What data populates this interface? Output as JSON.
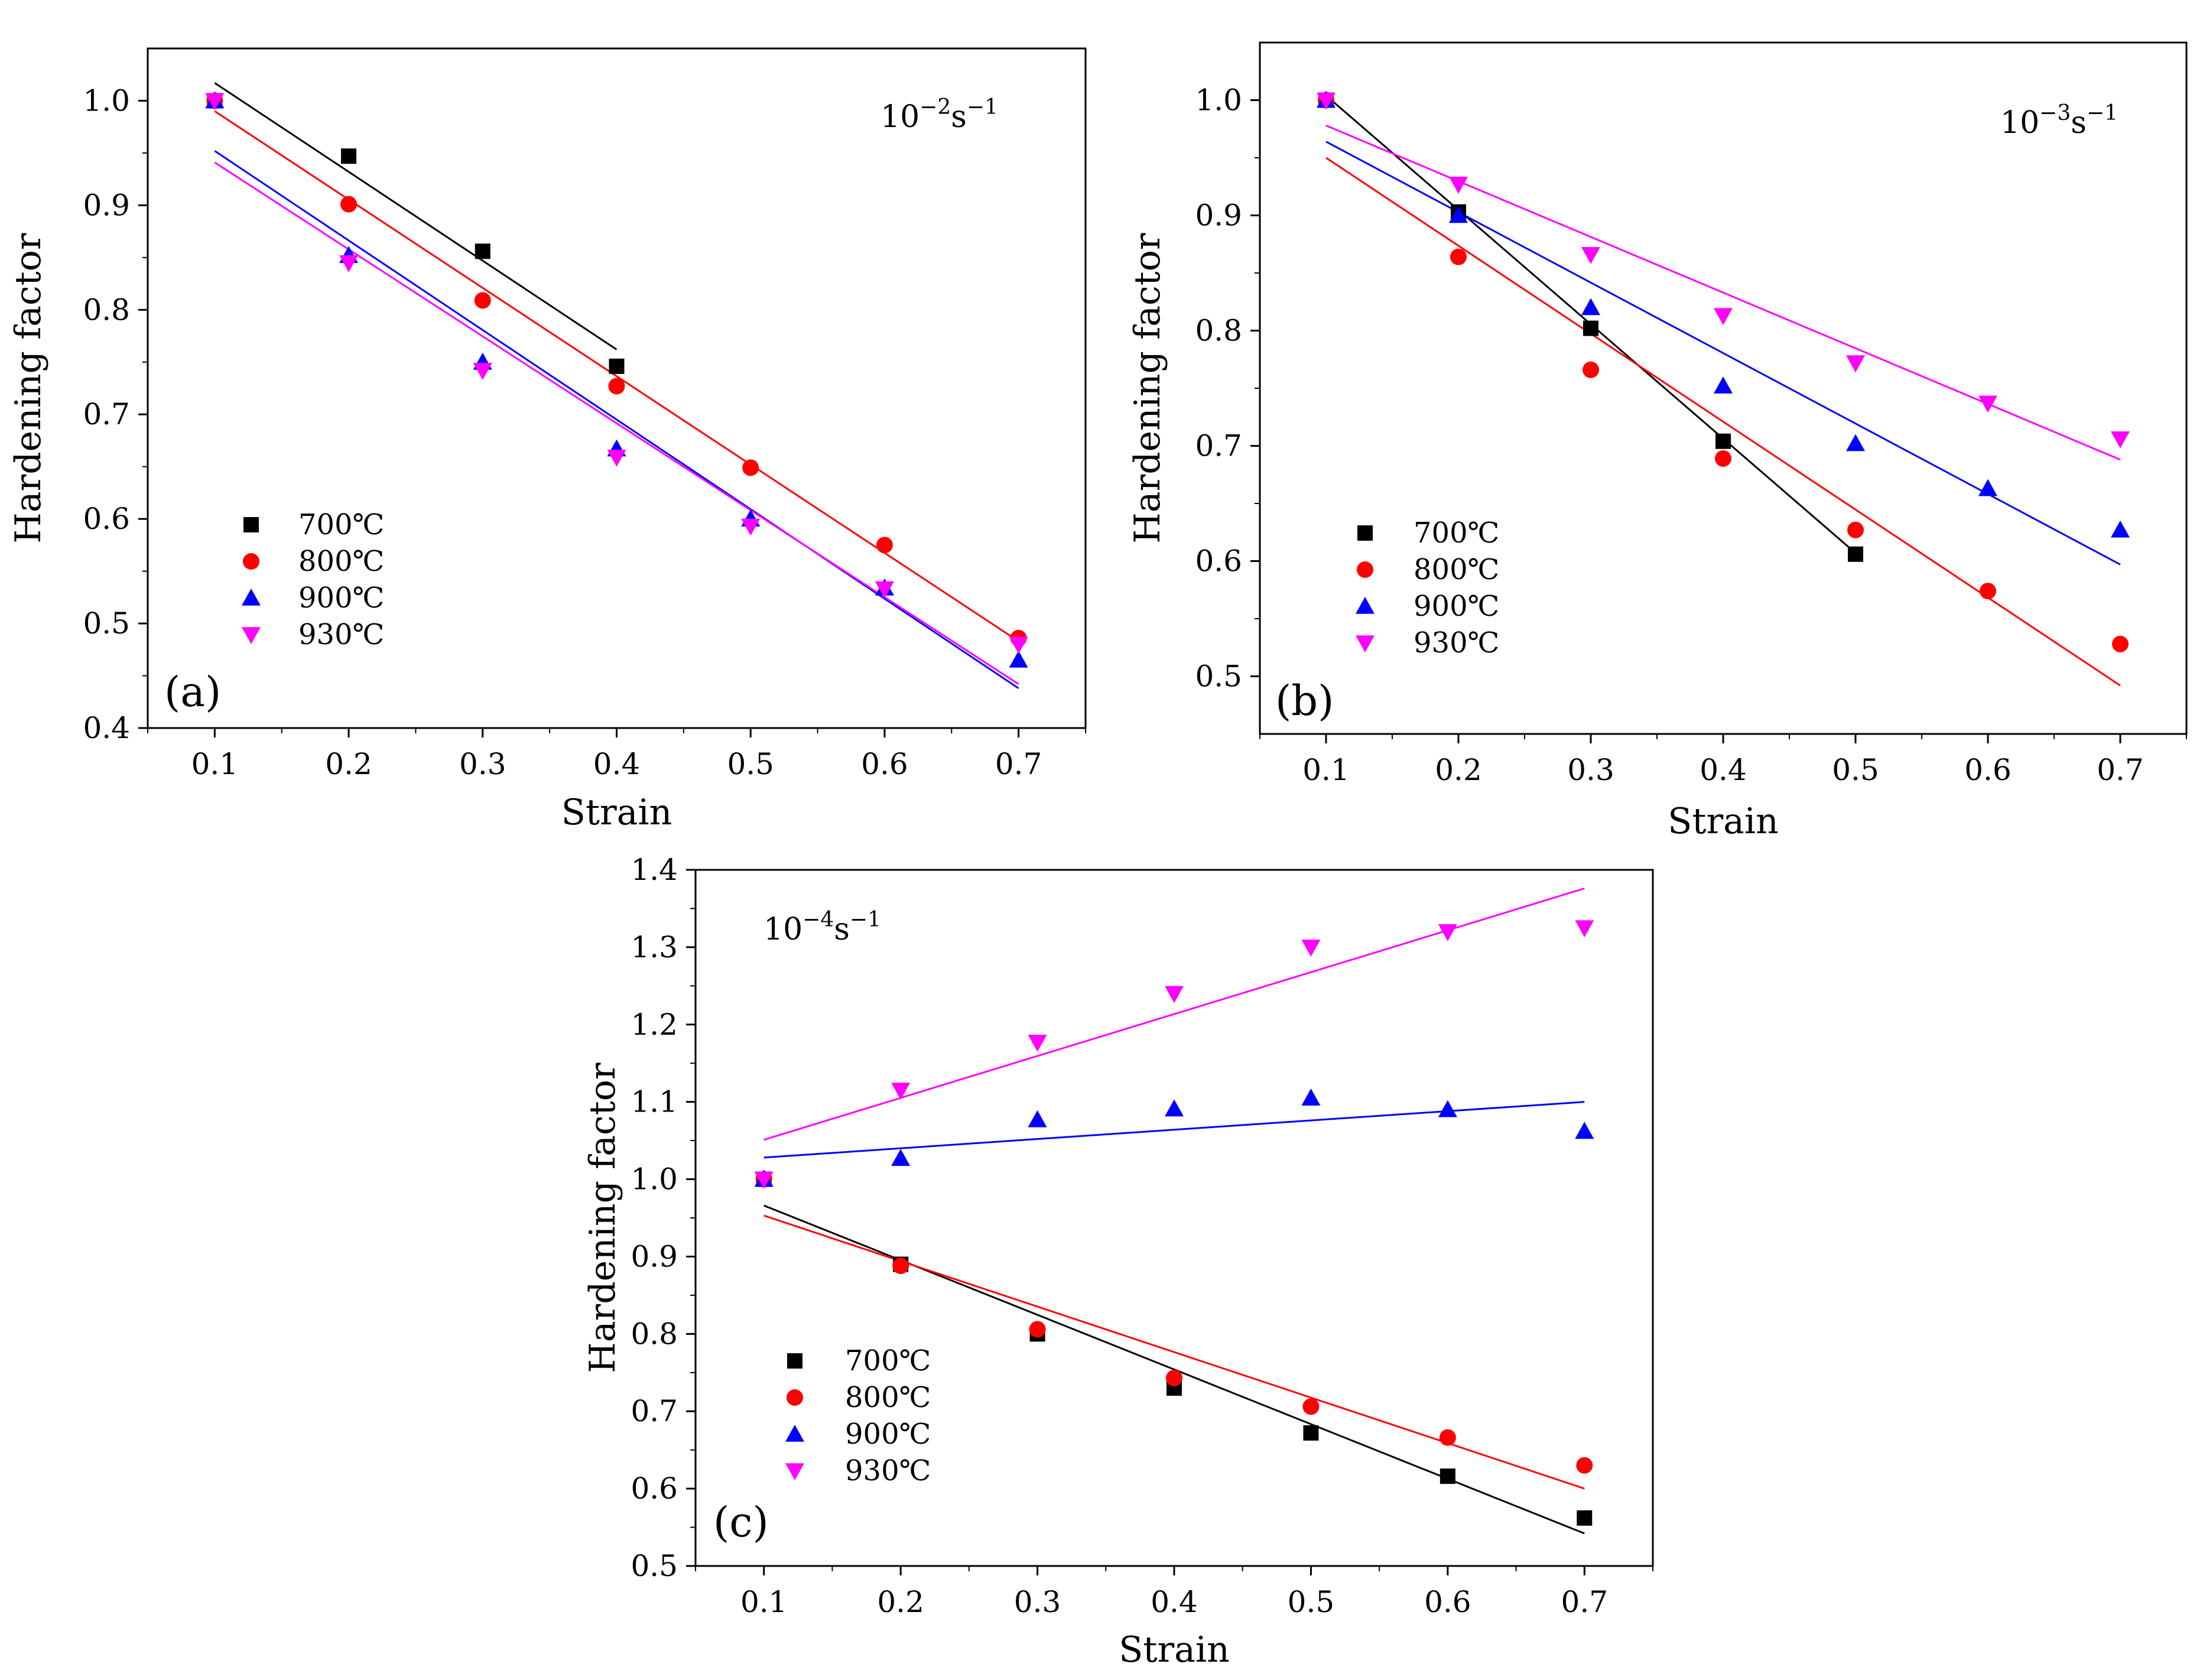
{
  "chart_data": [
    {
      "type": "scatter",
      "panel_label": "(a)",
      "rate_label": {
        "base": "10",
        "exp": "−2",
        "unit": "s",
        "unit_exp": "−1"
      },
      "xlabel": "Strain",
      "ylabel": "Hardening factor",
      "xlim": [
        0.05,
        0.75
      ],
      "ylim": [
        0.4,
        1.05
      ],
      "xticks": [
        "0.1",
        "0.2",
        "0.3",
        "0.4",
        "0.5",
        "0.6",
        "0.7"
      ],
      "yticks": [
        "0.4",
        "0.5",
        "0.6",
        "0.7",
        "0.8",
        "0.9",
        "1.0"
      ],
      "legend_position": "bottom-left",
      "series": [
        {
          "name": "700℃",
          "color": "#000000",
          "marker": "square",
          "x": [
            0.1,
            0.2,
            0.3,
            0.4
          ],
          "y": [
            1.0,
            0.947,
            0.856,
            0.746
          ],
          "fit": [
            [
              0.1,
              1.017
            ],
            [
              0.4,
              0.762
            ]
          ]
        },
        {
          "name": "800℃",
          "color": "#ff0000",
          "marker": "circle",
          "x": [
            0.1,
            0.2,
            0.3,
            0.4,
            0.5,
            0.6,
            0.7
          ],
          "y": [
            1.0,
            0.901,
            0.809,
            0.727,
            0.649,
            0.575,
            0.486
          ],
          "fit": [
            [
              0.1,
              0.99
            ],
            [
              0.7,
              0.483
            ]
          ]
        },
        {
          "name": "900℃",
          "color": "#0000ff",
          "marker": "triangle-up",
          "x": [
            0.1,
            0.2,
            0.3,
            0.4,
            0.5,
            0.6,
            0.7
          ],
          "y": [
            1.0,
            0.852,
            0.75,
            0.667,
            0.6,
            0.534,
            0.465
          ],
          "fit": [
            [
              0.1,
              0.952
            ],
            [
              0.7,
              0.438
            ]
          ]
        },
        {
          "name": "930℃",
          "color": "#ff00ff",
          "marker": "triangle-down",
          "x": [
            0.1,
            0.2,
            0.3,
            0.4,
            0.5,
            0.6,
            0.7
          ],
          "y": [
            1.0,
            0.845,
            0.742,
            0.659,
            0.593,
            0.533,
            0.48
          ],
          "fit": [
            [
              0.1,
              0.941
            ],
            [
              0.7,
              0.442
            ]
          ]
        }
      ]
    },
    {
      "type": "scatter",
      "panel_label": "(b)",
      "rate_label": {
        "base": "10",
        "exp": "−3",
        "unit": "s",
        "unit_exp": "−1"
      },
      "xlabel": "Strain",
      "ylabel": "Hardening factor",
      "xlim": [
        0.05,
        0.75
      ],
      "ylim": [
        0.45,
        1.05
      ],
      "xticks": [
        "0.1",
        "0.2",
        "0.3",
        "0.4",
        "0.5",
        "0.6",
        "0.7"
      ],
      "yticks": [
        "0.5",
        "0.6",
        "0.7",
        "0.8",
        "0.9",
        "1.0"
      ],
      "legend_position": "bottom-left",
      "series": [
        {
          "name": "700℃",
          "color": "#000000",
          "marker": "square",
          "x": [
            0.1,
            0.2,
            0.3,
            0.4,
            0.5
          ],
          "y": [
            1.0,
            0.903,
            0.802,
            0.704,
            0.606
          ],
          "fit": [
            [
              0.1,
              1.004
            ],
            [
              0.5,
              0.607
            ]
          ]
        },
        {
          "name": "800℃",
          "color": "#ff0000",
          "marker": "circle",
          "x": [
            0.1,
            0.2,
            0.3,
            0.4,
            0.5,
            0.6,
            0.7
          ],
          "y": [
            1.0,
            0.864,
            0.766,
            0.689,
            0.627,
            0.574,
            0.528
          ],
          "fit": [
            [
              0.1,
              0.95
            ],
            [
              0.7,
              0.492
            ]
          ]
        },
        {
          "name": "900℃",
          "color": "#0000ff",
          "marker": "triangle-up",
          "x": [
            0.1,
            0.2,
            0.3,
            0.4,
            0.5,
            0.6,
            0.7
          ],
          "y": [
            1.0,
            0.9,
            0.82,
            0.752,
            0.702,
            0.663,
            0.627
          ],
          "fit": [
            [
              0.1,
              0.964
            ],
            [
              0.7,
              0.597
            ]
          ]
        },
        {
          "name": "930℃",
          "color": "#ff00ff",
          "marker": "triangle-down",
          "x": [
            0.1,
            0.2,
            0.3,
            0.4,
            0.5,
            0.6,
            0.7
          ],
          "y": [
            1.0,
            0.927,
            0.866,
            0.813,
            0.772,
            0.737,
            0.706
          ],
          "fit": [
            [
              0.1,
              0.978
            ],
            [
              0.7,
              0.688
            ]
          ]
        }
      ]
    },
    {
      "type": "scatter",
      "panel_label": "(c)",
      "rate_label": {
        "base": "10",
        "exp": "−4",
        "unit": "s",
        "unit_exp": "−1"
      },
      "xlabel": "Strain",
      "ylabel": "Hardening factor",
      "xlim": [
        0.05,
        0.75
      ],
      "ylim": [
        0.5,
        1.4
      ],
      "xticks": [
        "0.1",
        "0.2",
        "0.3",
        "0.4",
        "0.5",
        "0.6",
        "0.7"
      ],
      "yticks": [
        "0.5",
        "0.6",
        "0.7",
        "0.8",
        "0.9",
        "1.0",
        "1.1",
        "1.2",
        "1.3",
        "1.4"
      ],
      "legend_position": "bottom-left",
      "series": [
        {
          "name": "700℃",
          "color": "#000000",
          "marker": "square",
          "x": [
            0.1,
            0.2,
            0.3,
            0.4,
            0.5,
            0.6,
            0.7
          ],
          "y": [
            1.0,
            0.89,
            0.8,
            0.73,
            0.672,
            0.616,
            0.562
          ],
          "fit": [
            [
              0.1,
              0.966
            ],
            [
              0.7,
              0.542
            ]
          ]
        },
        {
          "name": "800℃",
          "color": "#ff0000",
          "marker": "circle",
          "x": [
            0.1,
            0.2,
            0.3,
            0.4,
            0.5,
            0.6,
            0.7
          ],
          "y": [
            1.0,
            0.888,
            0.806,
            0.743,
            0.706,
            0.666,
            0.63
          ],
          "fit": [
            [
              0.1,
              0.953
            ],
            [
              0.7,
              0.6
            ]
          ]
        },
        {
          "name": "900℃",
          "color": "#0000ff",
          "marker": "triangle-up",
          "x": [
            0.1,
            0.2,
            0.3,
            0.4,
            0.5,
            0.6,
            0.7
          ],
          "y": [
            1.0,
            1.027,
            1.077,
            1.091,
            1.105,
            1.09,
            1.062
          ],
          "fit": [
            [
              0.1,
              1.028
            ],
            [
              0.7,
              1.1
            ]
          ]
        },
        {
          "name": "930℃",
          "color": "#ff00ff",
          "marker": "triangle-down",
          "x": [
            0.1,
            0.2,
            0.3,
            0.4,
            0.5,
            0.6,
            0.7
          ],
          "y": [
            1.0,
            1.115,
            1.177,
            1.24,
            1.3,
            1.32,
            1.325
          ],
          "fit": [
            [
              0.1,
              1.051
            ],
            [
              0.7,
              1.376
            ]
          ]
        }
      ]
    }
  ]
}
